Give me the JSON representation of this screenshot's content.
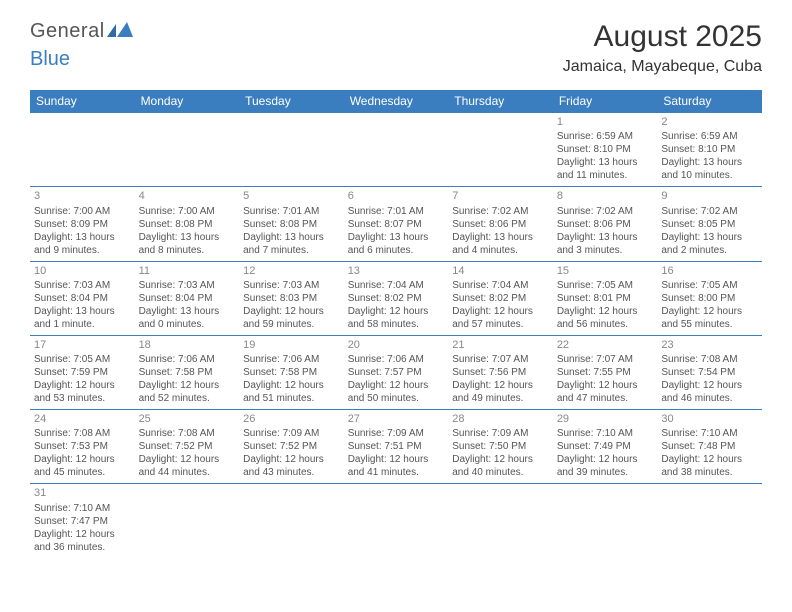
{
  "logo": {
    "general": "General",
    "blue": "Blue"
  },
  "title": "August 2025",
  "location": "Jamaica, Mayabeque, Cuba",
  "colors": {
    "header_bg": "#3b7ec0",
    "header_text": "#ffffff",
    "text": "#555555",
    "daynum": "#888888",
    "border": "#3b7ec0"
  },
  "fonts": {
    "title_size": 30,
    "location_size": 16,
    "th_size": 12,
    "cell_size": 10,
    "daynum_size": 11
  },
  "dayHeaders": [
    "Sunday",
    "Monday",
    "Tuesday",
    "Wednesday",
    "Thursday",
    "Friday",
    "Saturday"
  ],
  "weeks": [
    [
      null,
      null,
      null,
      null,
      null,
      {
        "n": "1",
        "sr": "Sunrise: 6:59 AM",
        "ss": "Sunset: 8:10 PM",
        "d1": "Daylight: 13 hours",
        "d2": "and 11 minutes."
      },
      {
        "n": "2",
        "sr": "Sunrise: 6:59 AM",
        "ss": "Sunset: 8:10 PM",
        "d1": "Daylight: 13 hours",
        "d2": "and 10 minutes."
      }
    ],
    [
      {
        "n": "3",
        "sr": "Sunrise: 7:00 AM",
        "ss": "Sunset: 8:09 PM",
        "d1": "Daylight: 13 hours",
        "d2": "and 9 minutes."
      },
      {
        "n": "4",
        "sr": "Sunrise: 7:00 AM",
        "ss": "Sunset: 8:08 PM",
        "d1": "Daylight: 13 hours",
        "d2": "and 8 minutes."
      },
      {
        "n": "5",
        "sr": "Sunrise: 7:01 AM",
        "ss": "Sunset: 8:08 PM",
        "d1": "Daylight: 13 hours",
        "d2": "and 7 minutes."
      },
      {
        "n": "6",
        "sr": "Sunrise: 7:01 AM",
        "ss": "Sunset: 8:07 PM",
        "d1": "Daylight: 13 hours",
        "d2": "and 6 minutes."
      },
      {
        "n": "7",
        "sr": "Sunrise: 7:02 AM",
        "ss": "Sunset: 8:06 PM",
        "d1": "Daylight: 13 hours",
        "d2": "and 4 minutes."
      },
      {
        "n": "8",
        "sr": "Sunrise: 7:02 AM",
        "ss": "Sunset: 8:06 PM",
        "d1": "Daylight: 13 hours",
        "d2": "and 3 minutes."
      },
      {
        "n": "9",
        "sr": "Sunrise: 7:02 AM",
        "ss": "Sunset: 8:05 PM",
        "d1": "Daylight: 13 hours",
        "d2": "and 2 minutes."
      }
    ],
    [
      {
        "n": "10",
        "sr": "Sunrise: 7:03 AM",
        "ss": "Sunset: 8:04 PM",
        "d1": "Daylight: 13 hours",
        "d2": "and 1 minute."
      },
      {
        "n": "11",
        "sr": "Sunrise: 7:03 AM",
        "ss": "Sunset: 8:04 PM",
        "d1": "Daylight: 13 hours",
        "d2": "and 0 minutes."
      },
      {
        "n": "12",
        "sr": "Sunrise: 7:03 AM",
        "ss": "Sunset: 8:03 PM",
        "d1": "Daylight: 12 hours",
        "d2": "and 59 minutes."
      },
      {
        "n": "13",
        "sr": "Sunrise: 7:04 AM",
        "ss": "Sunset: 8:02 PM",
        "d1": "Daylight: 12 hours",
        "d2": "and 58 minutes."
      },
      {
        "n": "14",
        "sr": "Sunrise: 7:04 AM",
        "ss": "Sunset: 8:02 PM",
        "d1": "Daylight: 12 hours",
        "d2": "and 57 minutes."
      },
      {
        "n": "15",
        "sr": "Sunrise: 7:05 AM",
        "ss": "Sunset: 8:01 PM",
        "d1": "Daylight: 12 hours",
        "d2": "and 56 minutes."
      },
      {
        "n": "16",
        "sr": "Sunrise: 7:05 AM",
        "ss": "Sunset: 8:00 PM",
        "d1": "Daylight: 12 hours",
        "d2": "and 55 minutes."
      }
    ],
    [
      {
        "n": "17",
        "sr": "Sunrise: 7:05 AM",
        "ss": "Sunset: 7:59 PM",
        "d1": "Daylight: 12 hours",
        "d2": "and 53 minutes."
      },
      {
        "n": "18",
        "sr": "Sunrise: 7:06 AM",
        "ss": "Sunset: 7:58 PM",
        "d1": "Daylight: 12 hours",
        "d2": "and 52 minutes."
      },
      {
        "n": "19",
        "sr": "Sunrise: 7:06 AM",
        "ss": "Sunset: 7:58 PM",
        "d1": "Daylight: 12 hours",
        "d2": "and 51 minutes."
      },
      {
        "n": "20",
        "sr": "Sunrise: 7:06 AM",
        "ss": "Sunset: 7:57 PM",
        "d1": "Daylight: 12 hours",
        "d2": "and 50 minutes."
      },
      {
        "n": "21",
        "sr": "Sunrise: 7:07 AM",
        "ss": "Sunset: 7:56 PM",
        "d1": "Daylight: 12 hours",
        "d2": "and 49 minutes."
      },
      {
        "n": "22",
        "sr": "Sunrise: 7:07 AM",
        "ss": "Sunset: 7:55 PM",
        "d1": "Daylight: 12 hours",
        "d2": "and 47 minutes."
      },
      {
        "n": "23",
        "sr": "Sunrise: 7:08 AM",
        "ss": "Sunset: 7:54 PM",
        "d1": "Daylight: 12 hours",
        "d2": "and 46 minutes."
      }
    ],
    [
      {
        "n": "24",
        "sr": "Sunrise: 7:08 AM",
        "ss": "Sunset: 7:53 PM",
        "d1": "Daylight: 12 hours",
        "d2": "and 45 minutes."
      },
      {
        "n": "25",
        "sr": "Sunrise: 7:08 AM",
        "ss": "Sunset: 7:52 PM",
        "d1": "Daylight: 12 hours",
        "d2": "and 44 minutes."
      },
      {
        "n": "26",
        "sr": "Sunrise: 7:09 AM",
        "ss": "Sunset: 7:52 PM",
        "d1": "Daylight: 12 hours",
        "d2": "and 43 minutes."
      },
      {
        "n": "27",
        "sr": "Sunrise: 7:09 AM",
        "ss": "Sunset: 7:51 PM",
        "d1": "Daylight: 12 hours",
        "d2": "and 41 minutes."
      },
      {
        "n": "28",
        "sr": "Sunrise: 7:09 AM",
        "ss": "Sunset: 7:50 PM",
        "d1": "Daylight: 12 hours",
        "d2": "and 40 minutes."
      },
      {
        "n": "29",
        "sr": "Sunrise: 7:10 AM",
        "ss": "Sunset: 7:49 PM",
        "d1": "Daylight: 12 hours",
        "d2": "and 39 minutes."
      },
      {
        "n": "30",
        "sr": "Sunrise: 7:10 AM",
        "ss": "Sunset: 7:48 PM",
        "d1": "Daylight: 12 hours",
        "d2": "and 38 minutes."
      }
    ],
    [
      {
        "n": "31",
        "sr": "Sunrise: 7:10 AM",
        "ss": "Sunset: 7:47 PM",
        "d1": "Daylight: 12 hours",
        "d2": "and 36 minutes."
      },
      null,
      null,
      null,
      null,
      null,
      null
    ]
  ]
}
